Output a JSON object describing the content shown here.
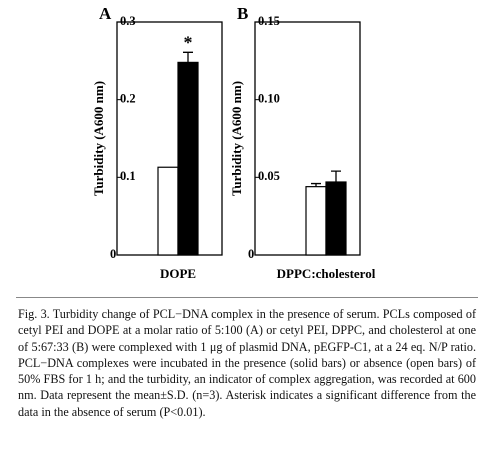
{
  "chart_data": [
    {
      "type": "bar",
      "panel": "A",
      "ylabel": "Turbidity (A600 nm)",
      "categories": [
        "DOPE"
      ],
      "series": [
        {
          "color": "#ffffff",
          "values": [
            0.113
          ],
          "errors": [
            null
          ]
        },
        {
          "color": "#000000",
          "values": [
            0.248
          ],
          "errors": [
            0.013
          ]
        }
      ],
      "annotations": [
        "*"
      ],
      "ylim": [
        0,
        0.3
      ],
      "yticks": [
        0,
        0.1,
        0.2,
        0.3
      ]
    },
    {
      "type": "bar",
      "panel": "B",
      "ylabel": "Turbidity (A600 nm)",
      "categories": [
        "DPPC:cholesterol"
      ],
      "series": [
        {
          "color": "#ffffff",
          "values": [
            0.044
          ],
          "errors": [
            0.002
          ]
        },
        {
          "color": "#000000",
          "values": [
            0.047
          ],
          "errors": [
            0.007
          ]
        }
      ],
      "ylim": [
        0,
        0.15
      ],
      "yticks": [
        0,
        {
          "value": 0.05,
          "label": "0.05"
        },
        {
          "value": 0.1,
          "label": "0.10"
        },
        0.15
      ]
    }
  ],
  "caption": "Fig. 3. Turbidity change of PCL−DNA complex in the presence of serum. PCLs composed of cetyl PEI and DOPE at a molar ratio of 5:100 (A) or cetyl PEI, DPPC, and cholesterol at one of 5:67:33 (B) were complexed with 1 μg of plasmid DNA, pEGFP-C1, at a 24 eq. N/P ratio. PCL−DNA complexes were incubated in the presence (solid bars) or absence (open bars) of 50% FBS for 1 h; and the turbidity, an indicator of complex aggregation, was recorded at 600 nm. Data represent the mean±S.D. (n=3). Asterisk indicates a significant difference from the data in the absence of serum (P<0.01)."
}
